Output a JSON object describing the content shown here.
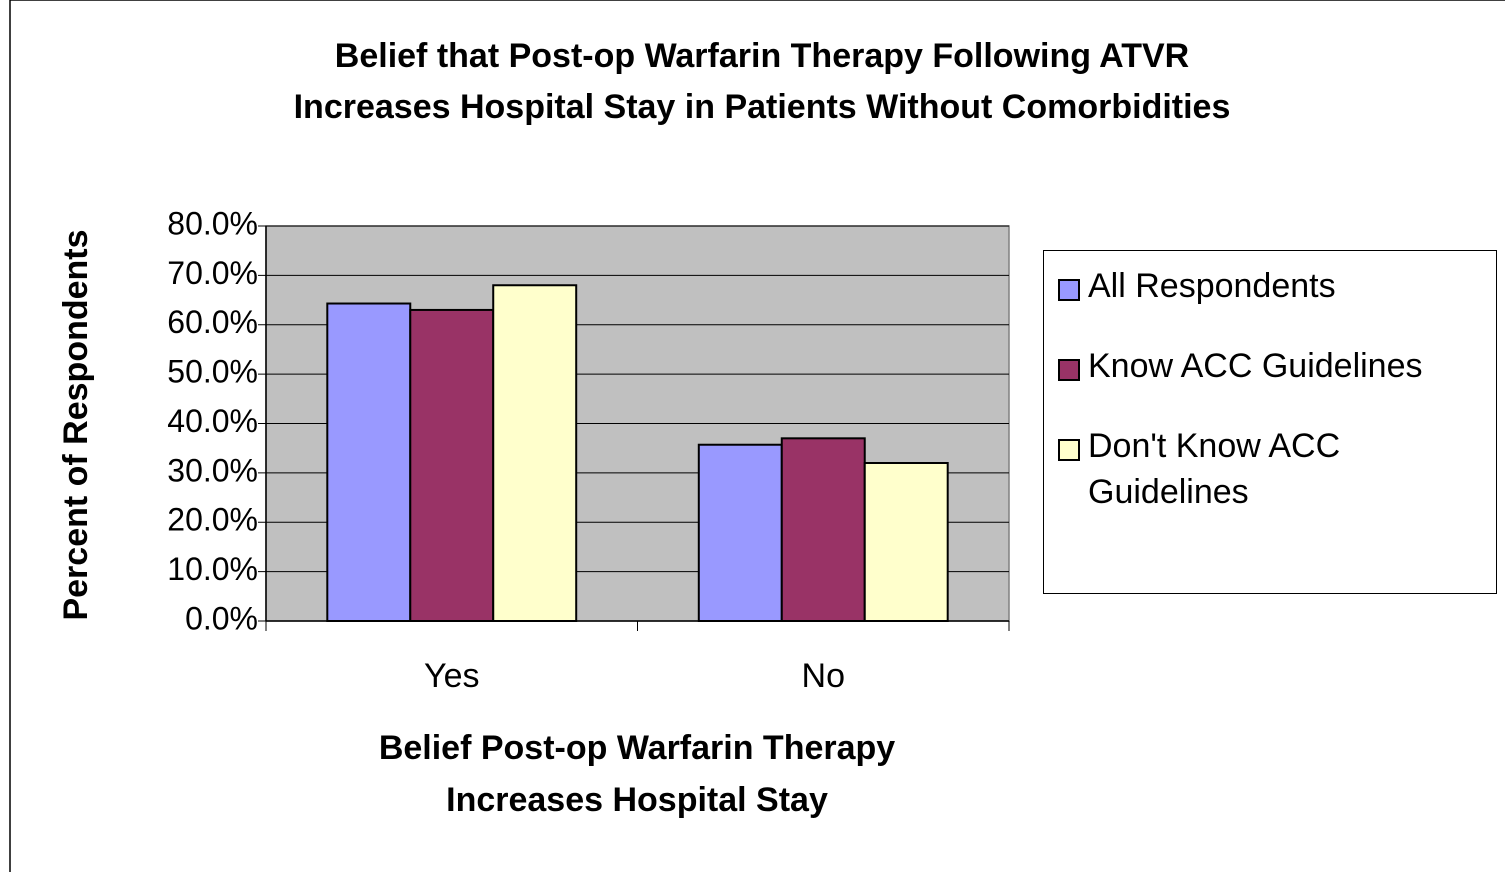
{
  "chart_data": {
    "type": "bar",
    "title": [
      "Belief that Post-op Warfarin Therapy Following ATVR",
      "Increases Hospital Stay in Patients Without Comorbidities"
    ],
    "x_label": [
      "Belief Post-op Warfarin Therapy",
      "Increases Hospital Stay"
    ],
    "y_label": "Percent of Respondents",
    "categories": [
      "Yes",
      "No"
    ],
    "series": [
      {
        "name": "All Respondents",
        "color": "#9999ff",
        "values": [
          64.3,
          35.7
        ]
      },
      {
        "name": "Know ACC Guidelines",
        "color": "#993366",
        "values": [
          63.0,
          37.0
        ]
      },
      {
        "name": "Don't Know ACC Guidelines",
        "color": "#ffffcc",
        "values": [
          68.0,
          32.0
        ]
      }
    ],
    "ylim": [
      0,
      80
    ],
    "yticks": [
      {
        "value": 0,
        "label": "0.0%"
      },
      {
        "value": 10,
        "label": "10.0%"
      },
      {
        "value": 20,
        "label": "20.0%"
      },
      {
        "value": 30,
        "label": "30.0%"
      },
      {
        "value": 40,
        "label": "40.0%"
      },
      {
        "value": 50,
        "label": "50.0%"
      },
      {
        "value": 60,
        "label": "60.0%"
      },
      {
        "value": 70,
        "label": "70.0%"
      },
      {
        "value": 80,
        "label": "80.0%"
      }
    ],
    "grid": true,
    "plot_background": "#c0c0c0",
    "legend": "right"
  }
}
